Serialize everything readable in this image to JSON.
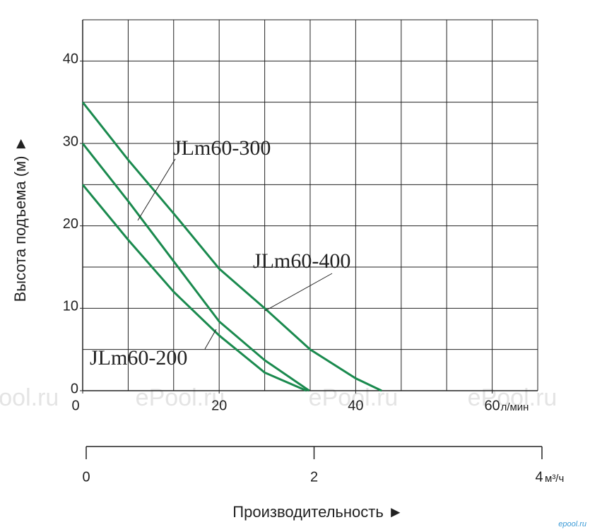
{
  "chart_data": {
    "type": "line",
    "ylabel": "Высота подъема (м) ►",
    "xlabel": "Производительность ►",
    "x_unit": "л/мин",
    "x2_unit": "м³/ч",
    "xlim": [
      0,
      66.67
    ],
    "xticks": [
      0,
      20,
      40,
      60
    ],
    "xgrid": [
      6.67,
      13.33,
      20,
      26.67,
      33.33,
      40,
      46.67,
      53.33,
      60,
      66.67
    ],
    "ylim": [
      0,
      45
    ],
    "yticks": [
      0,
      10,
      20,
      30,
      40
    ],
    "ygrid": [
      5,
      10,
      15,
      20,
      25,
      30,
      35,
      40,
      45
    ],
    "x2lim": [
      0,
      4
    ],
    "x2ticks": [
      0,
      2,
      4
    ],
    "grid": true,
    "series": [
      {
        "name": "JLm60-400",
        "color": "#1a8a4e",
        "x": [
          0,
          6.67,
          13.33,
          20,
          26.67,
          33.33,
          40,
          43.8
        ],
        "values": [
          35,
          28,
          21.5,
          14.8,
          10,
          5,
          1.5,
          0
        ]
      },
      {
        "name": "JLm60-300",
        "color": "#1a8a4e",
        "x": [
          0,
          6.67,
          13.33,
          20,
          26.67,
          33.2
        ],
        "values": [
          30,
          23,
          15.7,
          8.4,
          3.7,
          0
        ]
      },
      {
        "name": "JLm60-200",
        "color": "#1a8a4e",
        "x": [
          0,
          6.67,
          13.33,
          20,
          26.67,
          32.8
        ],
        "values": [
          25,
          18.3,
          12,
          6.7,
          2.2,
          0
        ]
      }
    ],
    "watermarks": [
      "ePool.ru",
      "ePool.ru",
      "ePool.ru",
      "ePool.ru",
      "ePool.ru"
    ],
    "corner_mark": "epool.ru"
  }
}
